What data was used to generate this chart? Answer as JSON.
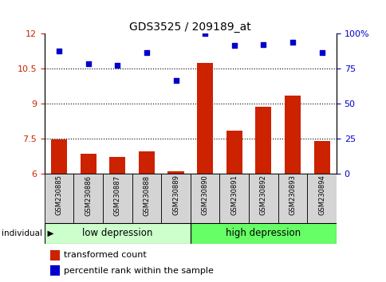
{
  "title": "GDS3525 / 209189_at",
  "samples": [
    "GSM230885",
    "GSM230886",
    "GSM230887",
    "GSM230888",
    "GSM230889",
    "GSM230890",
    "GSM230891",
    "GSM230892",
    "GSM230893",
    "GSM230894"
  ],
  "bar_values": [
    7.45,
    6.85,
    6.7,
    6.95,
    6.1,
    10.75,
    7.85,
    8.85,
    9.35,
    7.4
  ],
  "dot_values": [
    11.25,
    10.7,
    10.65,
    11.2,
    10.0,
    12.0,
    11.5,
    11.55,
    11.65,
    11.2
  ],
  "bar_color": "#cc2200",
  "dot_color": "#0000cc",
  "ylim_left": [
    6,
    12
  ],
  "ylim_right": [
    0,
    100
  ],
  "yticks_left": [
    6,
    7.5,
    9,
    10.5,
    12
  ],
  "yticks_right": [
    0,
    25,
    50,
    75,
    100
  ],
  "ytick_labels_left": [
    "6",
    "7.5",
    "9",
    "10.5",
    "12"
  ],
  "ytick_labels_right": [
    "0",
    "25",
    "50",
    "75",
    "100%"
  ],
  "group1_label": "low depression",
  "group2_label": "high depression",
  "group1_color": "#ccffcc",
  "group2_color": "#66ff66",
  "individual_label": "individual",
  "legend_bar_label": "transformed count",
  "legend_dot_label": "percentile rank within the sample",
  "grid_values": [
    7.5,
    9.0,
    10.5
  ],
  "bar_base": 6,
  "sample_box_color": "#d4d4d4"
}
